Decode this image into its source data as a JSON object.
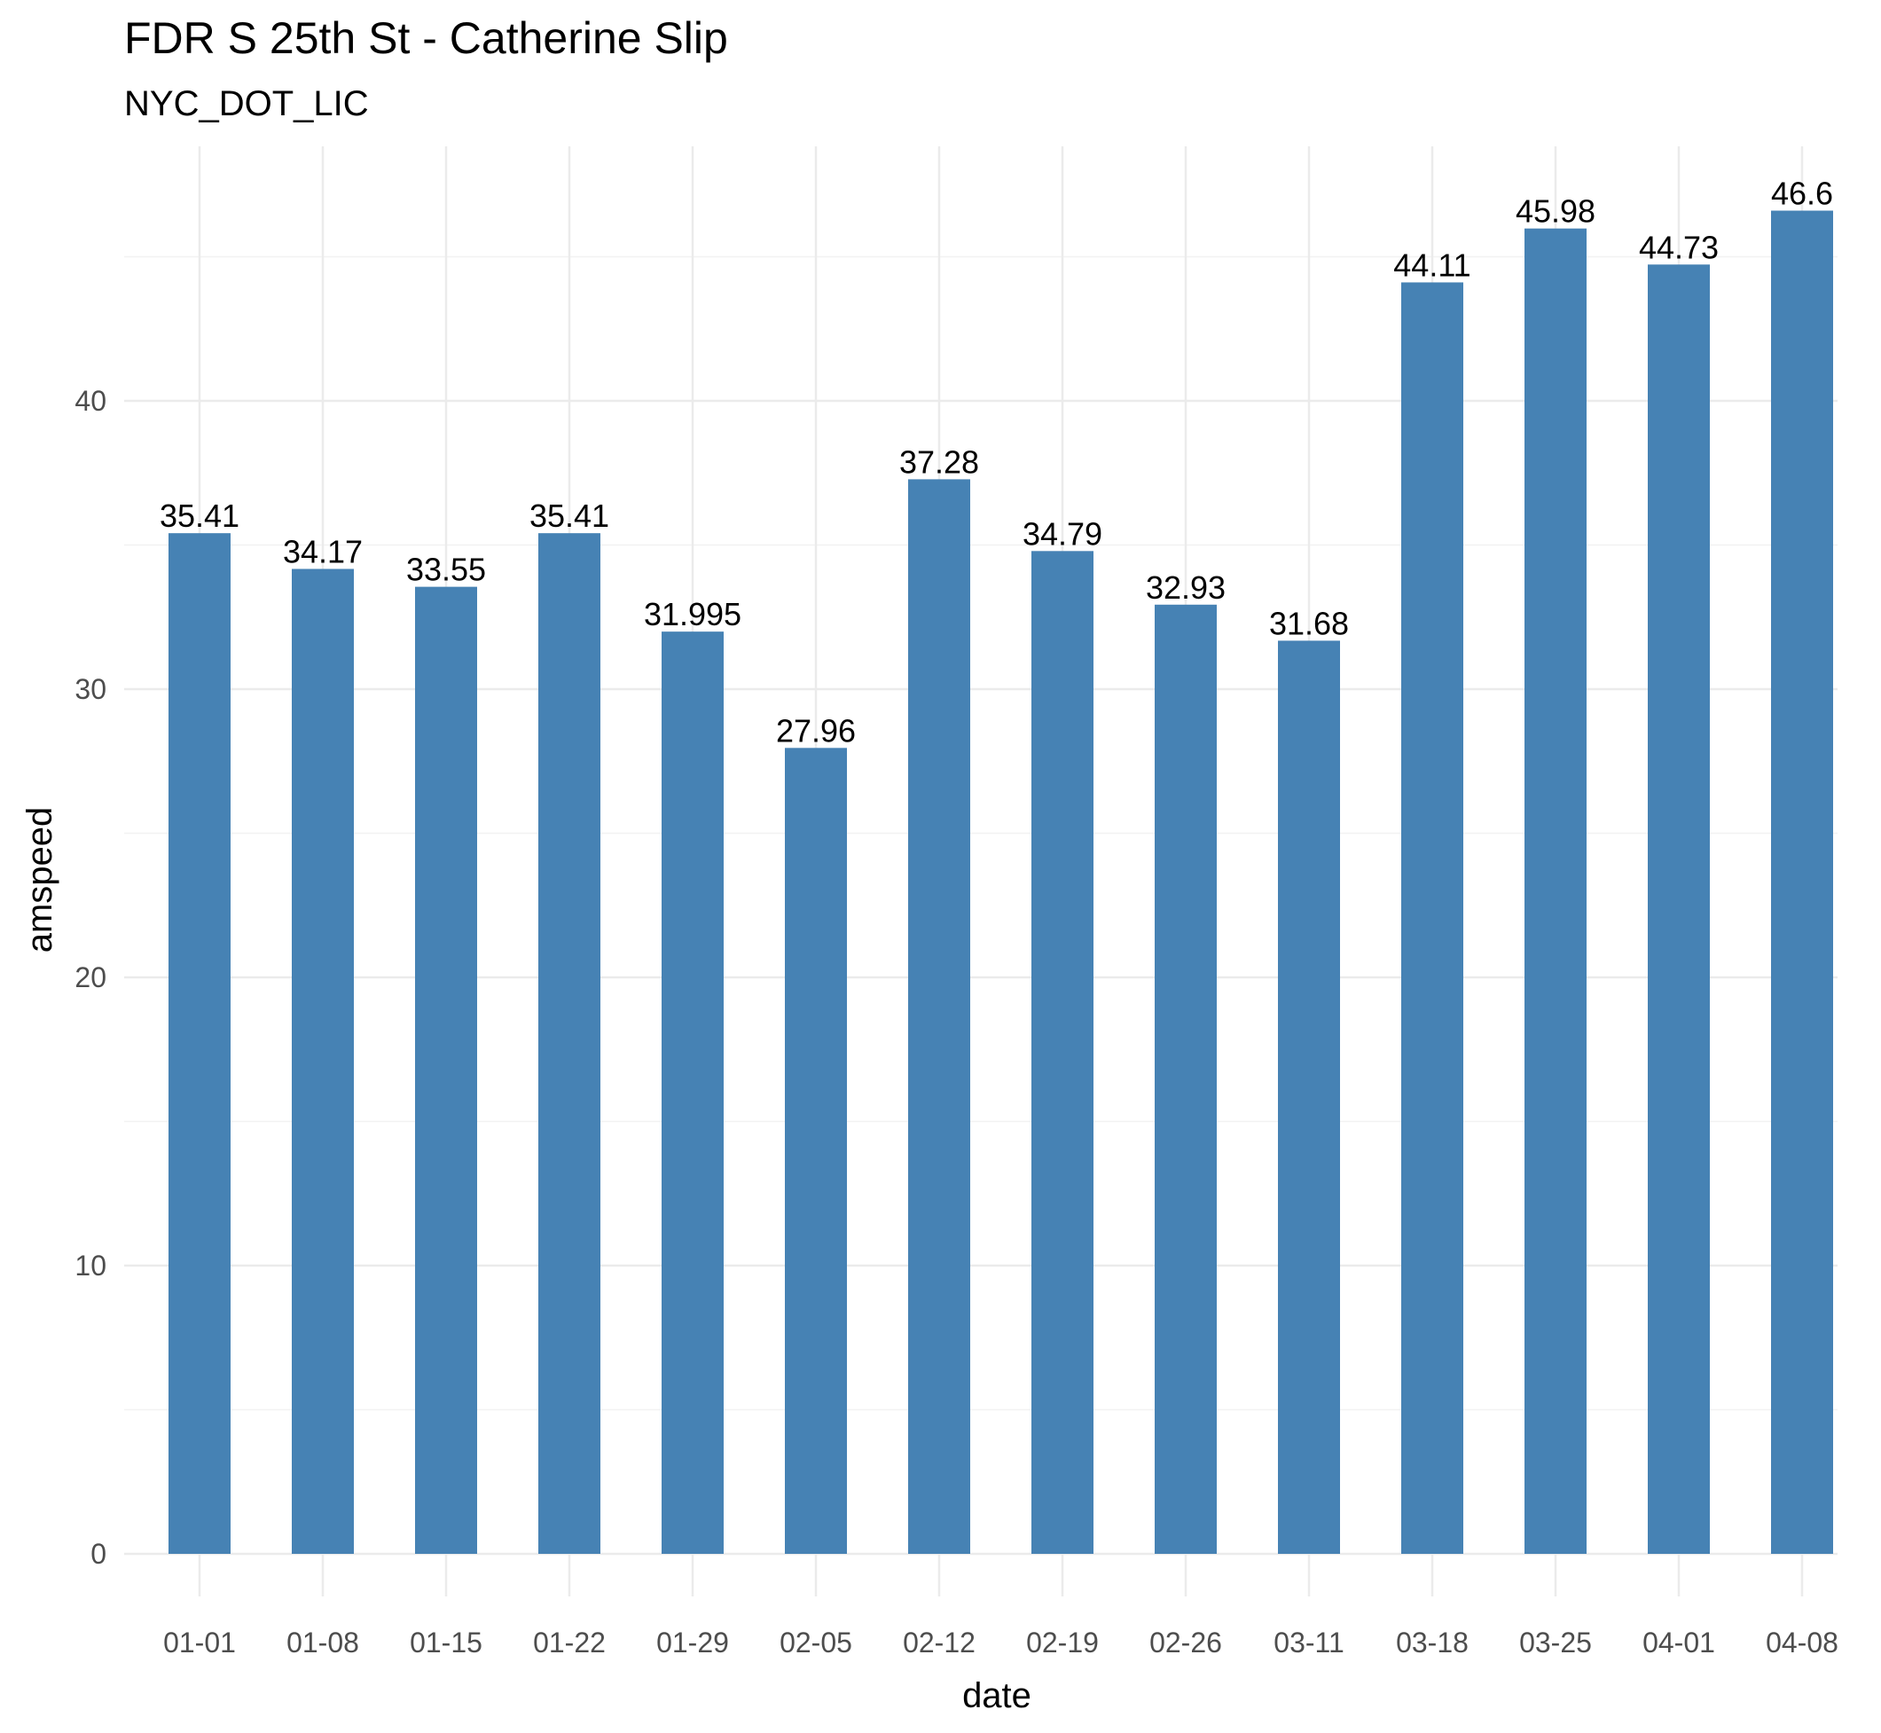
{
  "chart_data": {
    "type": "bar",
    "title": "FDR S 25th St - Catherine Slip",
    "subtitle": "NYC_DOT_LIC",
    "xlabel": "date",
    "ylabel": "amspeed",
    "categories": [
      "01-01",
      "01-08",
      "01-15",
      "01-22",
      "01-29",
      "02-05",
      "02-12",
      "02-19",
      "02-26",
      "03-11",
      "03-18",
      "03-25",
      "04-01",
      "04-08"
    ],
    "values": [
      35.41,
      34.17,
      33.55,
      35.41,
      31.995,
      27.96,
      37.28,
      34.79,
      32.93,
      31.68,
      44.11,
      45.98,
      44.73,
      46.6
    ],
    "value_labels": [
      "35.41",
      "34.17",
      "33.55",
      "35.41",
      "31.995",
      "27.96",
      "37.28",
      "34.79",
      "32.93",
      "31.68",
      "44.11",
      "45.98",
      "44.73",
      "46.6"
    ],
    "ylim": [
      0,
      48.8
    ],
    "y_ticks": [
      0,
      10,
      20,
      30,
      40
    ],
    "y_tick_labels": [
      "0",
      "10",
      "20",
      "30",
      "40"
    ],
    "grid": true,
    "legend": "none",
    "colors": {
      "bar": "#4682B4",
      "grid_major": "#EBEBEB",
      "grid_minor": "#F2F2F2",
      "tick_text": "#4D4D4D",
      "title_text": "#000000"
    }
  }
}
